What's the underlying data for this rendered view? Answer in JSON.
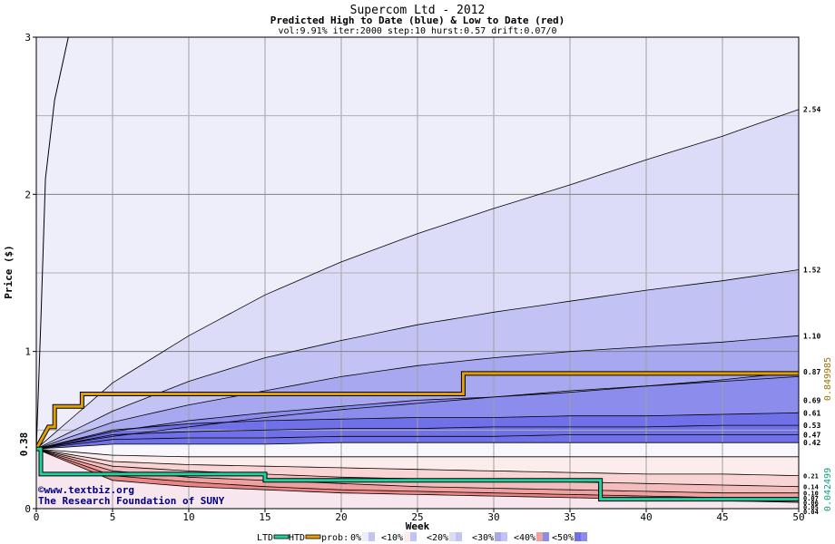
{
  "chart_data": {
    "type": "area",
    "title": "Supercom Ltd - 2012",
    "subtitle": "Predicted High to Date (blue) &  Low to Date (red)",
    "params": "vol:9.91% iter:2000 step:10 hurst:0.57 drift:0.07/0",
    "xlabel": "Week",
    "ylabel": "Price ($)",
    "xlim": [
      0,
      50
    ],
    "ylim": [
      0,
      3
    ],
    "xticks": [
      "0",
      "5",
      "10",
      "15",
      "20",
      "25",
      "30",
      "35",
      "40",
      "45",
      "50"
    ],
    "yticks": [
      "0",
      "1",
      "2",
      "3"
    ],
    "start_price": 0.38,
    "start_label": "0.38",
    "right_labels": [
      "2.54",
      "1.52",
      "1.10",
      "0.87",
      "0.69",
      "0.61",
      "0.53",
      "0.47",
      "0.42",
      "0.21",
      "0.14",
      "0.10",
      "0.07",
      "0.06",
      "0.05",
      "0.04"
    ],
    "right_axis_high": "0.849985",
    "right_axis_low": "0.042499",
    "weeks": [
      0,
      5,
      10,
      15,
      20,
      25,
      30,
      35,
      40,
      45,
      50
    ],
    "high_bands": [
      {
        "name": "high_p5",
        "values": [
          0.38,
          0.46,
          0.52,
          0.58,
          0.63,
          0.67,
          0.71,
          0.75,
          0.78,
          0.81,
          0.84
        ]
      },
      {
        "name": "high_p10",
        "values": [
          0.38,
          0.49,
          0.56,
          0.61,
          0.65,
          0.69,
          0.71,
          0.74,
          0.78,
          0.82,
          0.87
        ]
      },
      {
        "name": "high_p20",
        "values": [
          0.38,
          0.5,
          0.54,
          0.56,
          0.57,
          0.58,
          0.58,
          0.59,
          0.59,
          0.6,
          0.61
        ]
      },
      {
        "name": "high_p30",
        "values": [
          0.38,
          0.47,
          0.49,
          0.5,
          0.51,
          0.51,
          0.52,
          0.52,
          0.52,
          0.53,
          0.53
        ]
      },
      {
        "name": "high_p40",
        "values": [
          0.38,
          0.44,
          0.45,
          0.45,
          0.46,
          0.46,
          0.46,
          0.47,
          0.47,
          0.47,
          0.47
        ]
      },
      {
        "name": "high_p50",
        "values": [
          0.38,
          0.41,
          0.41,
          0.41,
          0.42,
          0.42,
          0.42,
          0.42,
          0.42,
          0.42,
          0.42
        ]
      },
      {
        "name": "high_upper_1",
        "values": [
          0.38,
          0.55,
          0.66,
          0.75,
          0.84,
          0.91,
          0.96,
          1.0,
          1.03,
          1.06,
          1.1
        ]
      },
      {
        "name": "high_upper_2",
        "values": [
          0.38,
          0.62,
          0.81,
          0.96,
          1.07,
          1.17,
          1.25,
          1.32,
          1.39,
          1.45,
          1.52
        ]
      },
      {
        "name": "high_upper_3",
        "values": [
          0.38,
          0.8,
          1.1,
          1.36,
          1.57,
          1.75,
          1.91,
          2.06,
          2.22,
          2.37,
          2.54
        ]
      }
    ],
    "low_bands": [
      {
        "name": "low_p50",
        "values": [
          0.38,
          0.34,
          0.33,
          0.33,
          0.33,
          0.33,
          0.33,
          0.33,
          0.33,
          0.33,
          0.33
        ]
      },
      {
        "name": "low_p40",
        "values": [
          0.38,
          0.3,
          0.28,
          0.27,
          0.26,
          0.25,
          0.24,
          0.23,
          0.22,
          0.22,
          0.21
        ]
      },
      {
        "name": "low_p30",
        "values": [
          0.38,
          0.27,
          0.24,
          0.22,
          0.2,
          0.19,
          0.18,
          0.17,
          0.16,
          0.15,
          0.14
        ]
      },
      {
        "name": "low_p20",
        "values": [
          0.38,
          0.24,
          0.2,
          0.18,
          0.16,
          0.14,
          0.13,
          0.12,
          0.11,
          0.1,
          0.1
        ]
      },
      {
        "name": "low_p10",
        "values": [
          0.38,
          0.21,
          0.17,
          0.14,
          0.12,
          0.11,
          0.1,
          0.09,
          0.08,
          0.07,
          0.07
        ]
      },
      {
        "name": "low_p5",
        "values": [
          0.38,
          0.18,
          0.14,
          0.12,
          0.1,
          0.09,
          0.08,
          0.07,
          0.06,
          0.05,
          0.04
        ]
      }
    ],
    "ltd_line": {
      "x": [
        0,
        0.3,
        0.3,
        15,
        15,
        37,
        37,
        50
      ],
      "y": [
        0.38,
        0.38,
        0.22,
        0.22,
        0.18,
        0.18,
        0.06,
        0.06
      ]
    },
    "htd_line": {
      "x": [
        0,
        0.8,
        1.2,
        1.2,
        3,
        3,
        28,
        28,
        50
      ],
      "y": [
        0.38,
        0.52,
        0.52,
        0.65,
        0.65,
        0.73,
        0.73,
        0.86,
        0.86
      ]
    },
    "legend": [
      "LTD",
      "HTD",
      "prob:",
      "0%",
      "<10%",
      "<20%",
      "<30%",
      "<40%",
      "<50%"
    ],
    "watermark": [
      "©www.textbiz.org",
      "The Research Foundation of SUNY"
    ],
    "colors": {
      "band_outer": "#eeeefb",
      "band_blue_1": "#dcdcf8",
      "band_blue_2": "#c2c2f4",
      "band_blue_3": "#a8a8f0",
      "band_blue_4": "#8c8cec",
      "band_blue_5": "#7070e8",
      "band_red_1": "#fcecec",
      "band_red_2": "#f8d4d4",
      "band_red_3": "#f4bcbc",
      "band_red_4": "#f0a0a0",
      "band_red_5": "#ec8484",
      "ltd": "#20d0a0",
      "htd": "#e0a000",
      "grid": "#a0a0a0"
    }
  }
}
